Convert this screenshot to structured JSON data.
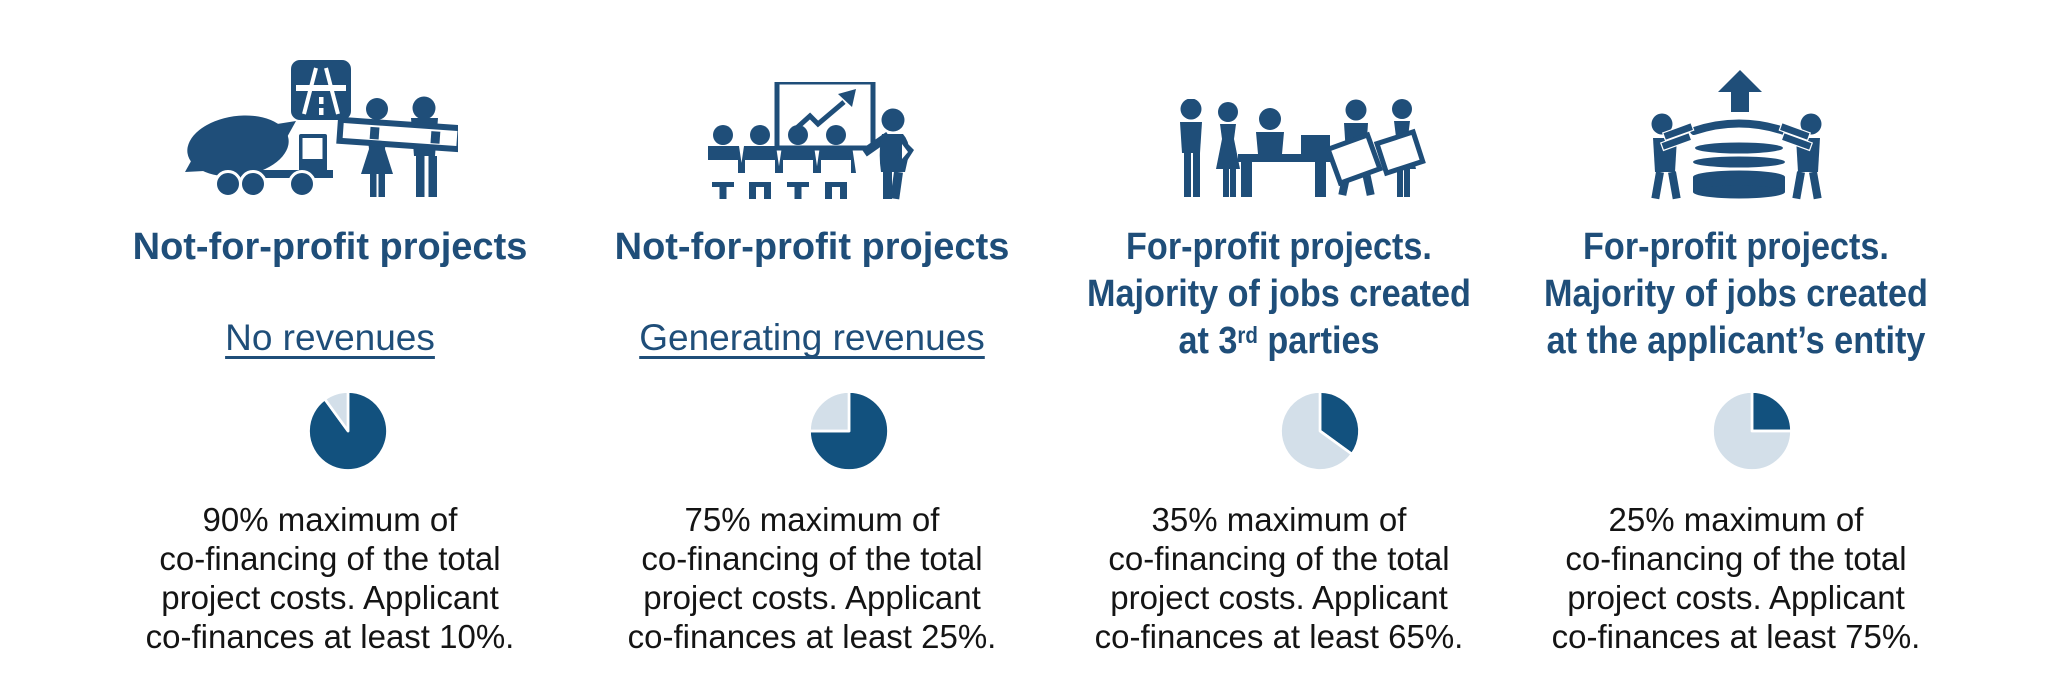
{
  "colors": {
    "navy": "#1F4E79",
    "pie_dark": "#12517E",
    "pie_light": "#D3DFE9",
    "text": "#141414"
  },
  "columns": [
    {
      "icon": "construction",
      "title": "Not-for-profit projects",
      "subtitle": "No revenues",
      "description": "90% maximum of\nco-financing of the total\nproject costs. Applicant\nco-finances at least 10%."
    },
    {
      "icon": "training",
      "title": "Not-for-profit projects",
      "subtitle": "Generating revenues",
      "description": "75% maximum of\nco-financing of the total\nproject costs. Applicant\nco-finances at least 25%."
    },
    {
      "icon": "meeting",
      "title_pre": "For-profit projects.\nMajority of jobs created\nat 3",
      "title_sup": "rd",
      "title_post": " parties",
      "description": "35% maximum of\nco-financing of the total\nproject costs. Applicant\nco-finances at least 65%."
    },
    {
      "icon": "growth",
      "title": "For-profit projects.\nMajority of jobs created\nat the applicant’s entity",
      "description": "25% maximum of\nco-financing of the total\nproject costs. Applicant\nco-finances at least 75%."
    }
  ],
  "chart_data": [
    {
      "type": "pie",
      "labels": [
        "maximum co-financing",
        "applicant co-finances"
      ],
      "values": [
        90,
        10
      ]
    },
    {
      "type": "pie",
      "labels": [
        "maximum co-financing",
        "applicant co-finances"
      ],
      "values": [
        75,
        25
      ]
    },
    {
      "type": "pie",
      "labels": [
        "maximum co-financing",
        "applicant co-finances"
      ],
      "values": [
        35,
        65
      ]
    },
    {
      "type": "pie",
      "labels": [
        "maximum co-financing",
        "applicant co-finances"
      ],
      "values": [
        25,
        75
      ]
    }
  ]
}
